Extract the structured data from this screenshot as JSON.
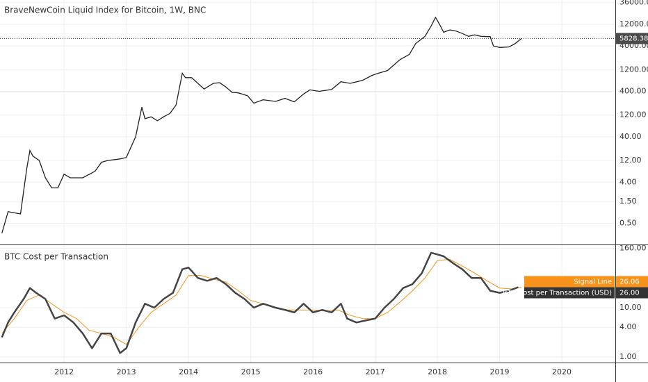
{
  "chart_data": [
    {
      "type": "line",
      "title": "BraveNewCoin Liquid Index for Bitcoin, 1W, BNC",
      "log": true,
      "grid": true,
      "color": "#222222",
      "xlim": [
        2010.97,
        2020.86
      ],
      "ylim": [
        0.17,
        41000
      ],
      "yticks": [
        {
          "value": 36000,
          "label": "36000.00"
        },
        {
          "value": 12000,
          "label": "12000.00"
        },
        {
          "value": 4000,
          "label": "4000.00"
        },
        {
          "value": 1200,
          "label": "1200.00"
        },
        {
          "value": 400,
          "label": "400.00"
        },
        {
          "value": 120,
          "label": "120.00"
        },
        {
          "value": 40,
          "label": "40.00"
        },
        {
          "value": 12,
          "label": "12.00"
        },
        {
          "value": 4,
          "label": "4.00"
        },
        {
          "value": 1.5,
          "label": "1.50"
        },
        {
          "value": 0.5,
          "label": "0.50"
        }
      ],
      "last_value": 5828.38,
      "x": [
        2011.0,
        2011.1,
        2011.3,
        2011.4,
        2011.45,
        2011.5,
        2011.6,
        2011.7,
        2011.8,
        2011.9,
        2012.0,
        2012.1,
        2012.3,
        2012.5,
        2012.6,
        2012.7,
        2012.9,
        2013.0,
        2013.15,
        2013.25,
        2013.3,
        2013.4,
        2013.5,
        2013.6,
        2013.7,
        2013.8,
        2013.9,
        2013.95,
        2014.05,
        2014.15,
        2014.25,
        2014.4,
        2014.5,
        2014.6,
        2014.7,
        2014.8,
        2014.95,
        2015.05,
        2015.2,
        2015.4,
        2015.55,
        2015.7,
        2015.85,
        2015.95,
        2016.1,
        2016.3,
        2016.45,
        2016.6,
        2016.8,
        2016.95,
        2017.05,
        2017.2,
        2017.4,
        2017.55,
        2017.65,
        2017.8,
        2017.9,
        2017.97,
        2018.05,
        2018.1,
        2018.2,
        2018.3,
        2018.4,
        2018.5,
        2018.6,
        2018.7,
        2018.85,
        2018.9,
        2019.0,
        2019.15,
        2019.25,
        2019.35
      ],
      "values": [
        0.3,
        0.9,
        0.8,
        8,
        20,
        15,
        12,
        5,
        3,
        3,
        6,
        5,
        5,
        7,
        11,
        12,
        13,
        14,
        40,
        180,
        100,
        110,
        90,
        110,
        130,
        200,
        1000,
        800,
        800,
        600,
        450,
        600,
        620,
        500,
        380,
        370,
        320,
        220,
        260,
        240,
        280,
        235,
        350,
        430,
        400,
        440,
        650,
        600,
        700,
        900,
        1000,
        1150,
        2000,
        2600,
        4500,
        6500,
        11000,
        17000,
        11000,
        8000,
        9000,
        8500,
        7500,
        6500,
        7000,
        6500,
        6400,
        4000,
        3700,
        3800,
        4500,
        5800
      ]
    },
    {
      "type": "line",
      "title": "BTC Cost per Transaction",
      "log": true,
      "grid": true,
      "xlim": [
        2010.97,
        2020.86
      ],
      "xticks": [
        2012,
        2013,
        2014,
        2015,
        2016,
        2017,
        2018,
        2019,
        2020
      ],
      "ylim": [
        0.77,
        185
      ],
      "yticks": [
        {
          "value": 160,
          "label": "160.00"
        },
        {
          "value": 10,
          "label": "10.00"
        },
        {
          "value": 4,
          "label": "4.00"
        },
        {
          "value": 1,
          "label": "1.00"
        }
      ],
      "series": [
        {
          "name": "Signal Line",
          "color": "#f7931a",
          "width": 1,
          "last_label": 26.06,
          "x": [
            2011.0,
            2011.2,
            2011.4,
            2011.6,
            2011.8,
            2012.0,
            2012.2,
            2012.4,
            2012.6,
            2012.8,
            2013.0,
            2013.2,
            2013.4,
            2013.6,
            2013.8,
            2014.0,
            2014.2,
            2014.4,
            2014.6,
            2014.8,
            2015.0,
            2015.2,
            2015.4,
            2015.6,
            2015.8,
            2016.0,
            2016.2,
            2016.4,
            2016.6,
            2016.8,
            2017.0,
            2017.2,
            2017.4,
            2017.6,
            2017.8,
            2018.0,
            2018.2,
            2018.4,
            2018.6,
            2018.8,
            2019.0,
            2019.2,
            2019.35
          ],
          "values": [
            3,
            6,
            14,
            18,
            12,
            8,
            6,
            3.5,
            3,
            2.5,
            1.8,
            4,
            8,
            12,
            18,
            45,
            45,
            38,
            33,
            22,
            14,
            12,
            10,
            9,
            9,
            9,
            8.5,
            9,
            7,
            6,
            6,
            8,
            13,
            22,
            40,
            90,
            95,
            70,
            50,
            35,
            25,
            24,
            26.06
          ]
        },
        {
          "name": "BTC Cost per Transaction (USD)",
          "color": "#444444",
          "width": 2.5,
          "last_label": {
            "value": 26,
            "label": "26.00"
          },
          "x": [
            2011.0,
            2011.1,
            2011.2,
            2011.35,
            2011.45,
            2011.55,
            2011.7,
            2011.85,
            2012.0,
            2012.15,
            2012.3,
            2012.45,
            2012.6,
            2012.75,
            2012.9,
            2013.0,
            2013.15,
            2013.3,
            2013.45,
            2013.6,
            2013.75,
            2013.9,
            2014.0,
            2014.15,
            2014.3,
            2014.45,
            2014.6,
            2014.75,
            2014.9,
            2015.05,
            2015.2,
            2015.4,
            2015.55,
            2015.7,
            2015.85,
            2016.0,
            2016.15,
            2016.3,
            2016.45,
            2016.55,
            2016.7,
            2016.85,
            2017.0,
            2017.15,
            2017.3,
            2017.45,
            2017.6,
            2017.75,
            2017.9,
            2018.0,
            2018.1,
            2018.25,
            2018.4,
            2018.55,
            2018.7,
            2018.85,
            2019.0,
            2019.15,
            2019.3
          ],
          "values": [
            2.5,
            5,
            8,
            15,
            25,
            20,
            15,
            6,
            7,
            5,
            3,
            1.5,
            3,
            3,
            1.2,
            1.5,
            5,
            12,
            10,
            15,
            20,
            60,
            65,
            40,
            35,
            40,
            30,
            20,
            15,
            10,
            12,
            10,
            9,
            8,
            12,
            8,
            9,
            8,
            12,
            6,
            5,
            5.5,
            6,
            10,
            15,
            25,
            30,
            50,
            130,
            120,
            110,
            80,
            60,
            40,
            40,
            22,
            20,
            22,
            26
          ]
        }
      ]
    }
  ]
}
